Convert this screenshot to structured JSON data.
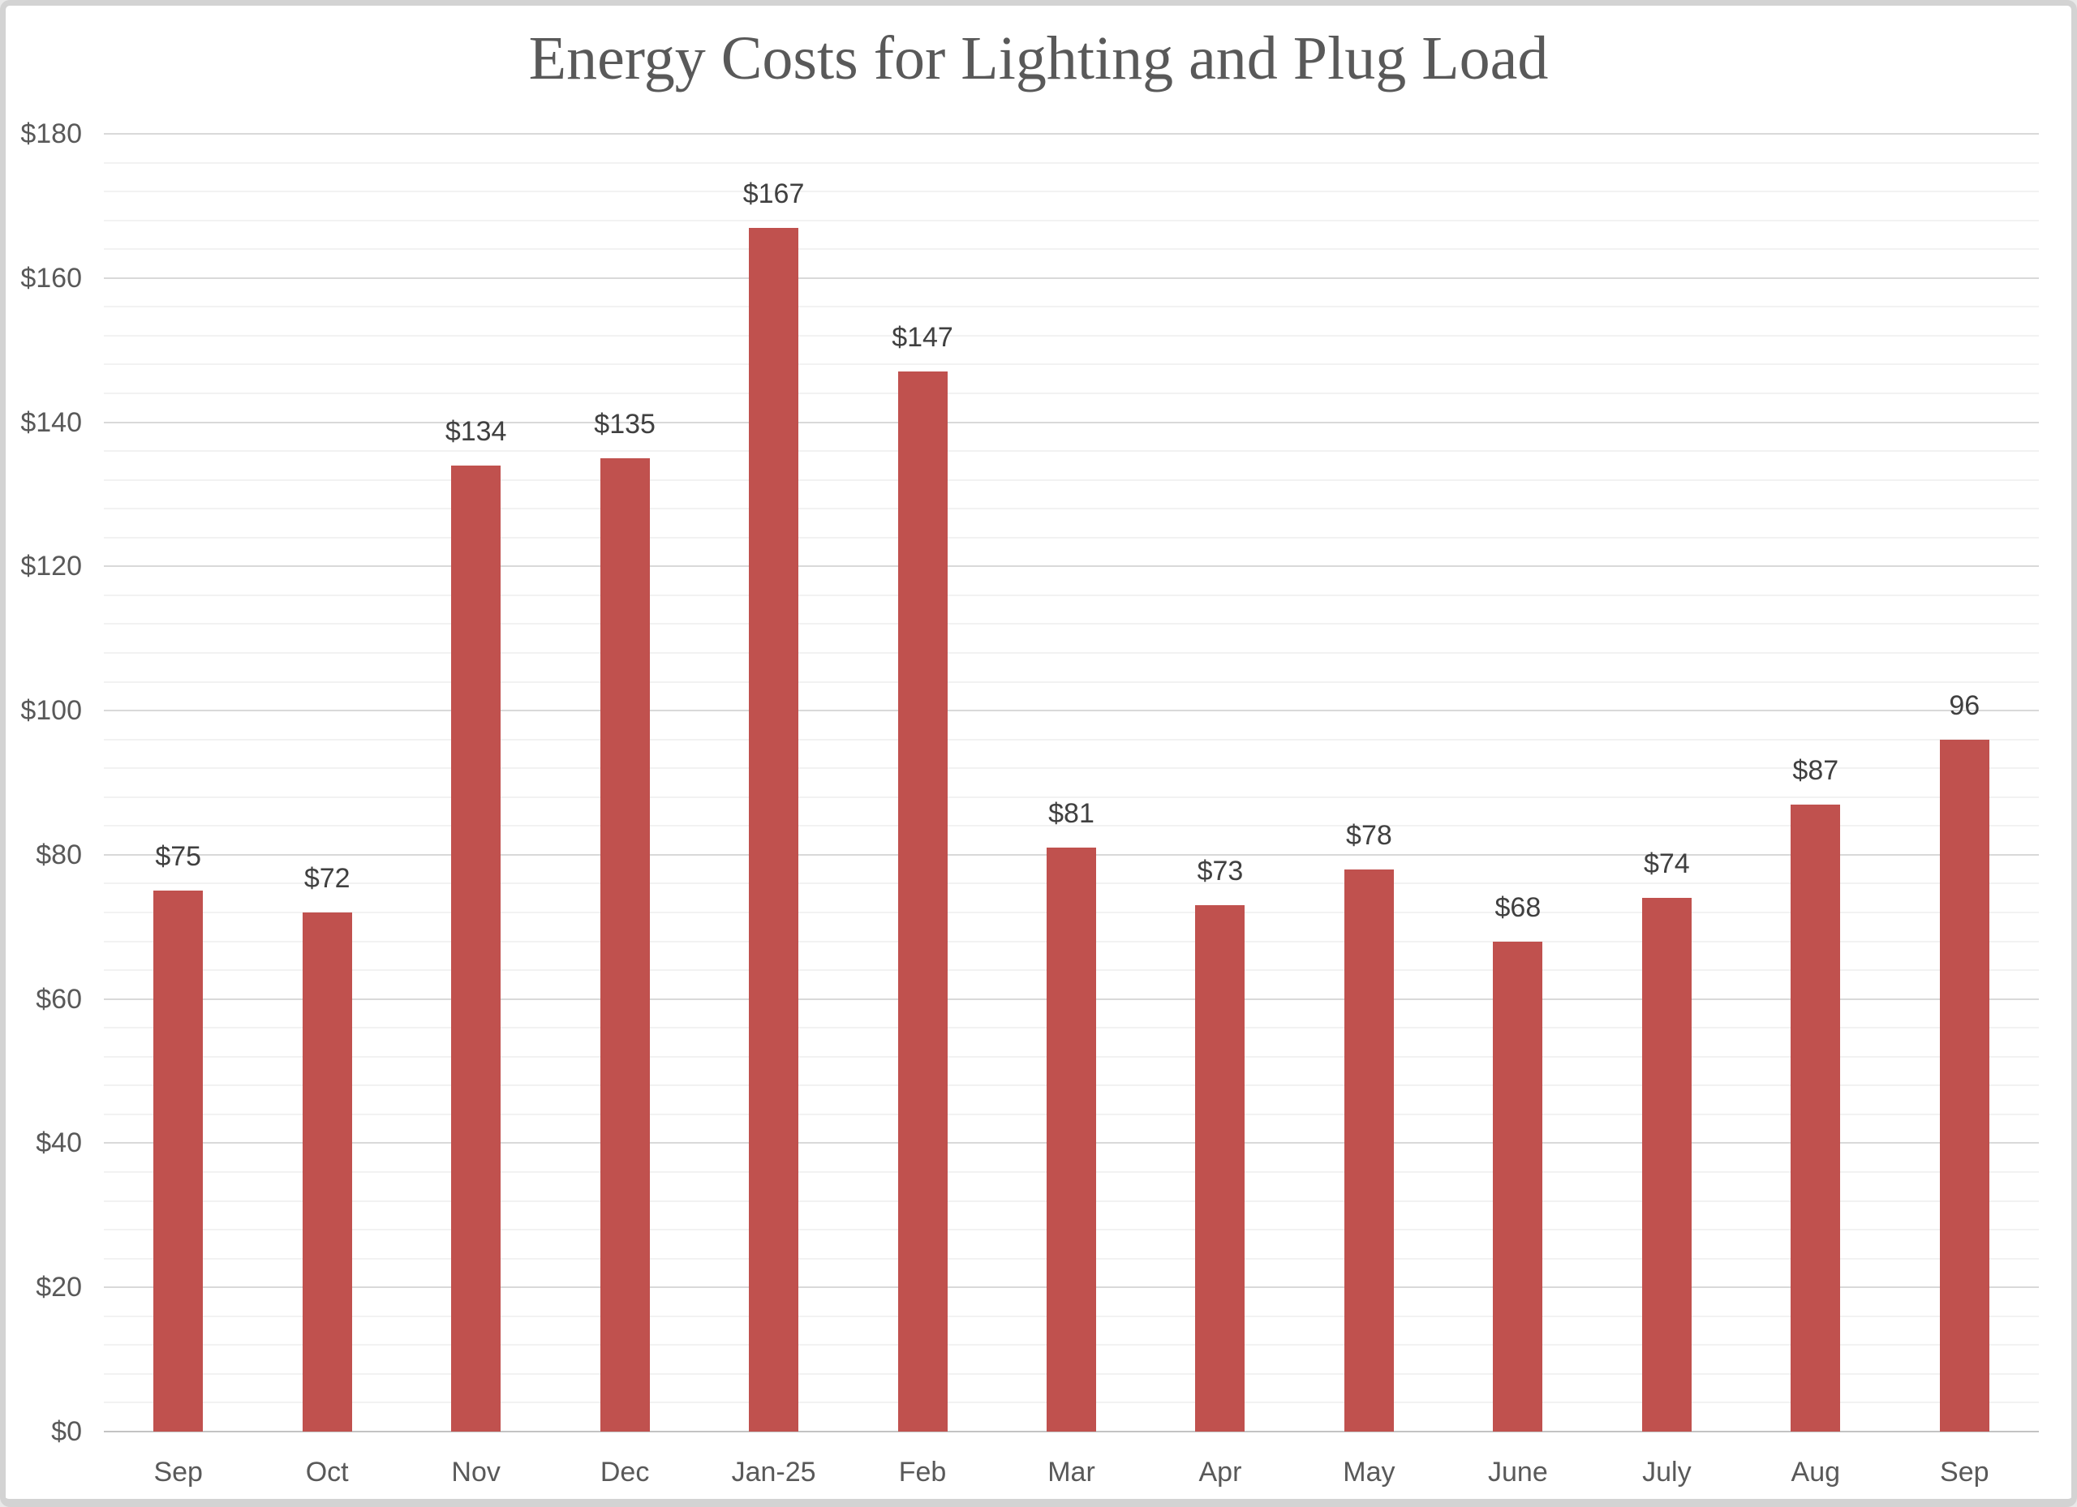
{
  "chart_data": {
    "type": "bar",
    "title": "Energy Costs for Lighting and Plug Load",
    "categories": [
      "Sep",
      "Oct",
      "Nov",
      "Dec",
      "Jan-25",
      "Feb",
      "Mar",
      "Apr",
      "May",
      "June",
      "July",
      "Aug",
      "Sep"
    ],
    "values": [
      75,
      72,
      134,
      135,
      167,
      147,
      81,
      73,
      78,
      68,
      74,
      87,
      96
    ],
    "data_labels": [
      "$75",
      "$72",
      "$134",
      "$135",
      "$167",
      "$147",
      "$81",
      "$73",
      "$78",
      "$68",
      "$74",
      "$87",
      "96"
    ],
    "xlabel": "",
    "ylabel": "",
    "ylim": [
      0,
      180
    ],
    "y_major_step": 20,
    "y_minor_step": 4,
    "y_tick_labels": [
      "$0",
      "$20",
      "$40",
      "$60",
      "$80",
      "$100",
      "$120",
      "$140",
      "$160",
      "$180"
    ],
    "grid": "horizontal major and minor gridlines",
    "legend": "none",
    "colors": {
      "bar": "#c0514e",
      "title_text": "#595959",
      "axis_text": "#595959",
      "data_label_text": "#404040",
      "major_gridline": "#d9d9d9",
      "minor_gridline": "#f2f2f2",
      "axis_baseline": "#c3c3c3",
      "frame_border": "#d3d3d3",
      "background": "#ffffff"
    }
  }
}
